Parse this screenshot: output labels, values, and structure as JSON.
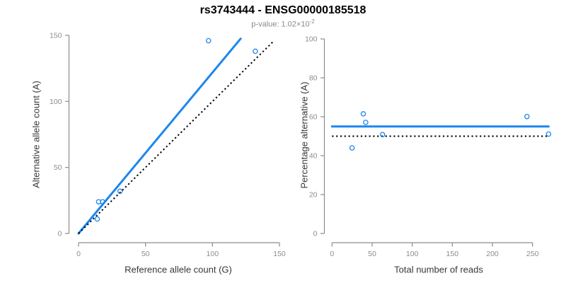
{
  "header": {
    "title": "rs3743444 - ENSG00000185518",
    "subtitle_prefix": "p-value: 1.02×10",
    "subtitle_exponent": "-2"
  },
  "palette": {
    "accent_blue": "#1C86EE",
    "axis_gray": "#8C8C8C",
    "tick_label_gray": "#8C8C8C",
    "subtitle_gray": "#8A8A8A",
    "axis_title_color": "#383838",
    "dotted_black": "#000000",
    "background": "#FFFFFF"
  },
  "chart_data": [
    {
      "name": "allele-counts-scatter",
      "type": "scatter",
      "xlabel": "Reference allele count (G)",
      "ylabel": "Alternative allele count (A)",
      "xlim": [
        0,
        150
      ],
      "ylim": [
        0,
        150
      ],
      "xticks": [
        0,
        50,
        100,
        150
      ],
      "yticks": [
        0,
        50,
        100,
        150
      ],
      "grid": false,
      "legend": null,
      "points_xy": [
        [
          14,
          11
        ],
        [
          15,
          24
        ],
        [
          18,
          24
        ],
        [
          31,
          32
        ],
        [
          97,
          146
        ],
        [
          132,
          138
        ]
      ],
      "lines": [
        {
          "name": "regression-line",
          "style": "solid",
          "color": "#1C86EE",
          "x1": 0,
          "y1": 0,
          "x2": 121,
          "y2": 147.5
        },
        {
          "name": "identity-line",
          "style": "dotted",
          "color": "#000000",
          "x1": 0,
          "y1": 0,
          "x2": 146,
          "y2": 146
        }
      ]
    },
    {
      "name": "percentage-vs-reads-scatter",
      "type": "scatter",
      "xlabel": "Total number of reads",
      "ylabel": "Percentage alternative (A)",
      "xlim": [
        0,
        270
      ],
      "ylim": [
        0,
        100
      ],
      "xticks": [
        0,
        50,
        100,
        150,
        200,
        250
      ],
      "yticks": [
        0,
        20,
        40,
        60,
        80,
        100
      ],
      "grid": false,
      "legend": null,
      "points_xy": [
        [
          25,
          44
        ],
        [
          39,
          61.5
        ],
        [
          42,
          57.1
        ],
        [
          63,
          50.8
        ],
        [
          243,
          60.1
        ],
        [
          270,
          51.1
        ]
      ],
      "lines": [
        {
          "name": "fitted-percentage-line",
          "style": "solid",
          "color": "#1C86EE",
          "x1": 0,
          "y1": 55,
          "x2": 270,
          "y2": 55
        },
        {
          "name": "fifty-percent-line",
          "style": "dotted",
          "color": "#000000",
          "x1": 0,
          "y1": 50,
          "x2": 270,
          "y2": 50
        }
      ]
    }
  ]
}
